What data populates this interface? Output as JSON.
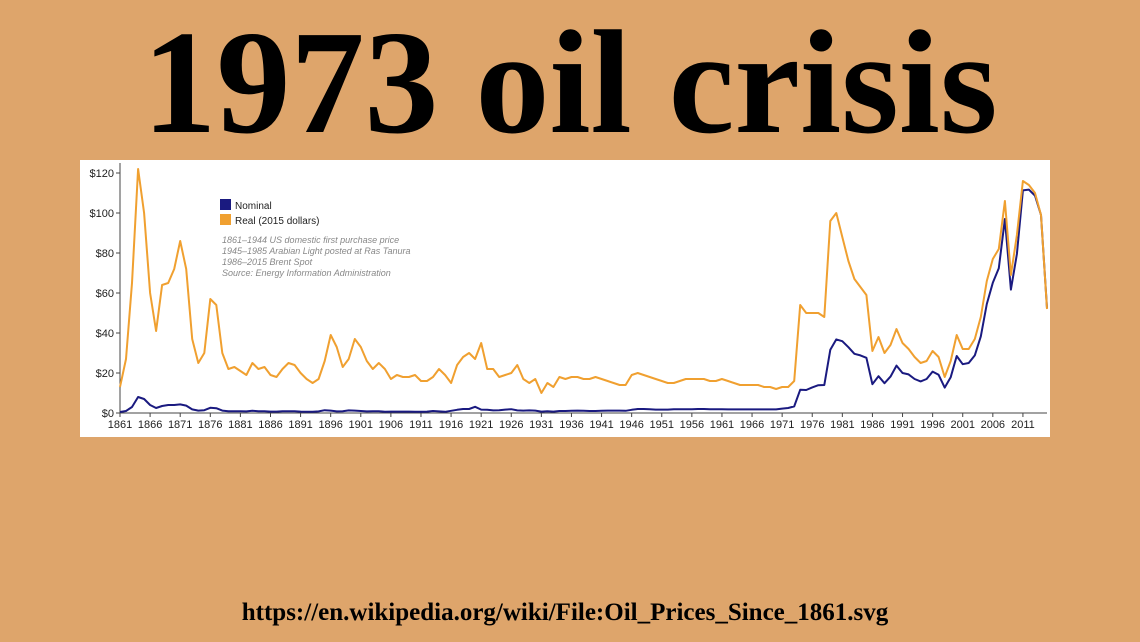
{
  "page": {
    "title": "1973 oil crisis",
    "url": "https://en.wikipedia.org/wiki/File:Oil_Prices_Since_1861.svg"
  },
  "chart_data": {
    "type": "line",
    "annotations": [
      "1861–1944 US domestic first purchase price",
      "1945–1985 Arabian Light posted at Ras Tanura",
      "1986–2015 Brent Spot",
      "Source: Energy Information Administration"
    ],
    "x": [
      1861,
      1862,
      1863,
      1864,
      1865,
      1866,
      1867,
      1868,
      1869,
      1870,
      1871,
      1872,
      1873,
      1874,
      1875,
      1876,
      1877,
      1878,
      1879,
      1880,
      1881,
      1882,
      1883,
      1884,
      1885,
      1886,
      1887,
      1888,
      1889,
      1890,
      1891,
      1892,
      1893,
      1894,
      1895,
      1896,
      1897,
      1898,
      1899,
      1900,
      1901,
      1902,
      1903,
      1904,
      1905,
      1906,
      1907,
      1908,
      1909,
      1910,
      1911,
      1912,
      1913,
      1914,
      1915,
      1916,
      1917,
      1918,
      1919,
      1920,
      1921,
      1922,
      1923,
      1924,
      1925,
      1926,
      1927,
      1928,
      1929,
      1930,
      1931,
      1932,
      1933,
      1934,
      1935,
      1936,
      1937,
      1938,
      1939,
      1940,
      1941,
      1942,
      1943,
      1944,
      1945,
      1946,
      1947,
      1948,
      1949,
      1950,
      1951,
      1952,
      1953,
      1954,
      1955,
      1956,
      1957,
      1958,
      1959,
      1960,
      1961,
      1962,
      1963,
      1964,
      1965,
      1966,
      1967,
      1968,
      1969,
      1970,
      1971,
      1972,
      1973,
      1974,
      1975,
      1976,
      1977,
      1978,
      1979,
      1980,
      1981,
      1982,
      1983,
      1984,
      1985,
      1986,
      1987,
      1988,
      1989,
      1990,
      1991,
      1992,
      1993,
      1994,
      1995,
      1996,
      1997,
      1998,
      1999,
      2000,
      2001,
      2002,
      2003,
      2004,
      2005,
      2006,
      2007,
      2008,
      2009,
      2010,
      2011,
      2012,
      2013,
      2014,
      2015
    ],
    "series": [
      {
        "name": "Nominal",
        "color": "#1a1a80",
        "values": [
          0.5,
          1,
          3,
          8,
          7,
          4,
          2.5,
          3.5,
          4,
          4,
          4.3,
          3.7,
          1.8,
          1.2,
          1.4,
          2.6,
          2.4,
          1.2,
          0.9,
          0.9,
          0.9,
          0.8,
          1.1,
          0.9,
          0.9,
          0.7,
          0.7,
          0.9,
          0.9,
          0.9,
          0.7,
          0.6,
          0.6,
          0.8,
          1.4,
          1.2,
          0.8,
          0.9,
          1.3,
          1.2,
          1,
          0.8,
          0.9,
          0.9,
          0.6,
          0.7,
          0.7,
          0.7,
          0.7,
          0.6,
          0.6,
          0.7,
          1,
          0.8,
          0.6,
          1.1,
          1.6,
          2,
          2,
          3.1,
          1.7,
          1.6,
          1.3,
          1.4,
          1.7,
          1.9,
          1.3,
          1.2,
          1.3,
          1.2,
          0.7,
          0.9,
          0.7,
          1,
          1,
          1.1,
          1.2,
          1.1,
          1,
          1,
          1.1,
          1.2,
          1.2,
          1.2,
          1.1,
          1.6,
          2,
          2,
          1.9,
          1.7,
          1.7,
          1.7,
          1.9,
          1.9,
          1.9,
          1.9,
          2,
          2,
          1.9,
          1.9,
          1.9,
          1.8,
          1.8,
          1.8,
          1.8,
          1.8,
          1.8,
          1.8,
          1.8,
          1.8,
          2.2,
          2.5,
          3.3,
          11.6,
          11.5,
          12.8,
          13.9,
          14,
          31.6,
          36.8,
          35.9,
          32.9,
          29.6,
          28.8,
          27.6,
          14.4,
          18.4,
          14.9,
          18.2,
          23.7,
          20,
          19.3,
          17,
          15.8,
          17,
          20.7,
          19.1,
          12.7,
          17.9,
          28.5,
          24.4,
          25,
          28.8,
          38.3,
          54.5,
          65.1,
          72.4,
          97,
          61.7,
          79.5,
          111.3,
          111.7,
          108.7,
          99,
          52.4
        ]
      },
      {
        "name": "Real (2015 dollars)",
        "color": "#f0a030",
        "values": [
          13,
          27,
          65,
          122,
          100,
          60,
          41,
          64,
          65,
          72,
          86,
          72,
          37,
          25,
          30,
          57,
          54,
          30,
          22,
          23,
          21,
          19,
          25,
          22,
          23,
          19,
          18,
          22,
          25,
          24,
          20,
          17,
          15,
          17,
          26,
          39,
          33,
          23,
          27,
          37,
          33,
          26,
          22,
          25,
          22,
          17,
          19,
          18,
          18,
          19,
          16,
          16,
          18,
          22,
          19,
          15,
          24,
          28,
          30,
          27,
          35,
          22,
          22,
          18,
          19,
          20,
          24,
          17,
          15,
          17,
          10,
          15,
          13,
          18,
          17,
          18,
          18,
          17,
          17,
          18,
          17,
          16,
          15,
          14,
          14,
          19,
          20,
          19,
          18,
          17,
          16,
          15,
          15,
          16,
          17,
          17,
          17,
          17,
          16,
          16,
          17,
          16,
          15,
          14,
          14,
          14,
          14,
          13,
          13,
          12,
          13,
          13,
          16,
          54,
          50,
          50,
          50,
          48,
          96,
          100,
          88,
          76,
          67,
          63,
          59,
          31,
          38,
          30,
          34,
          42,
          35,
          32,
          28,
          25,
          26,
          31,
          28,
          18,
          26,
          39,
          32,
          32,
          37,
          48,
          66,
          77,
          82,
          106,
          69,
          89,
          116,
          114,
          110,
          99,
          52
        ]
      }
    ],
    "xlim": [
      1861,
      2015
    ],
    "xticks": [
      1861,
      1866,
      1871,
      1876,
      1881,
      1886,
      1891,
      1896,
      1901,
      1906,
      1911,
      1916,
      1921,
      1926,
      1931,
      1936,
      1941,
      1946,
      1951,
      1956,
      1961,
      1966,
      1971,
      1976,
      1981,
      1986,
      1991,
      1996,
      2001,
      2006,
      2011
    ],
    "ylim": [
      0,
      125
    ],
    "yticks": [
      {
        "value": 0,
        "label": "$0"
      },
      {
        "value": 20,
        "label": "$20"
      },
      {
        "value": 40,
        "label": "$40"
      },
      {
        "value": 60,
        "label": "$60"
      },
      {
        "value": 80,
        "label": "$80"
      },
      {
        "value": 100,
        "label": "$100"
      },
      {
        "value": 120,
        "label": "$120"
      }
    ],
    "legend": "upper-left"
  }
}
